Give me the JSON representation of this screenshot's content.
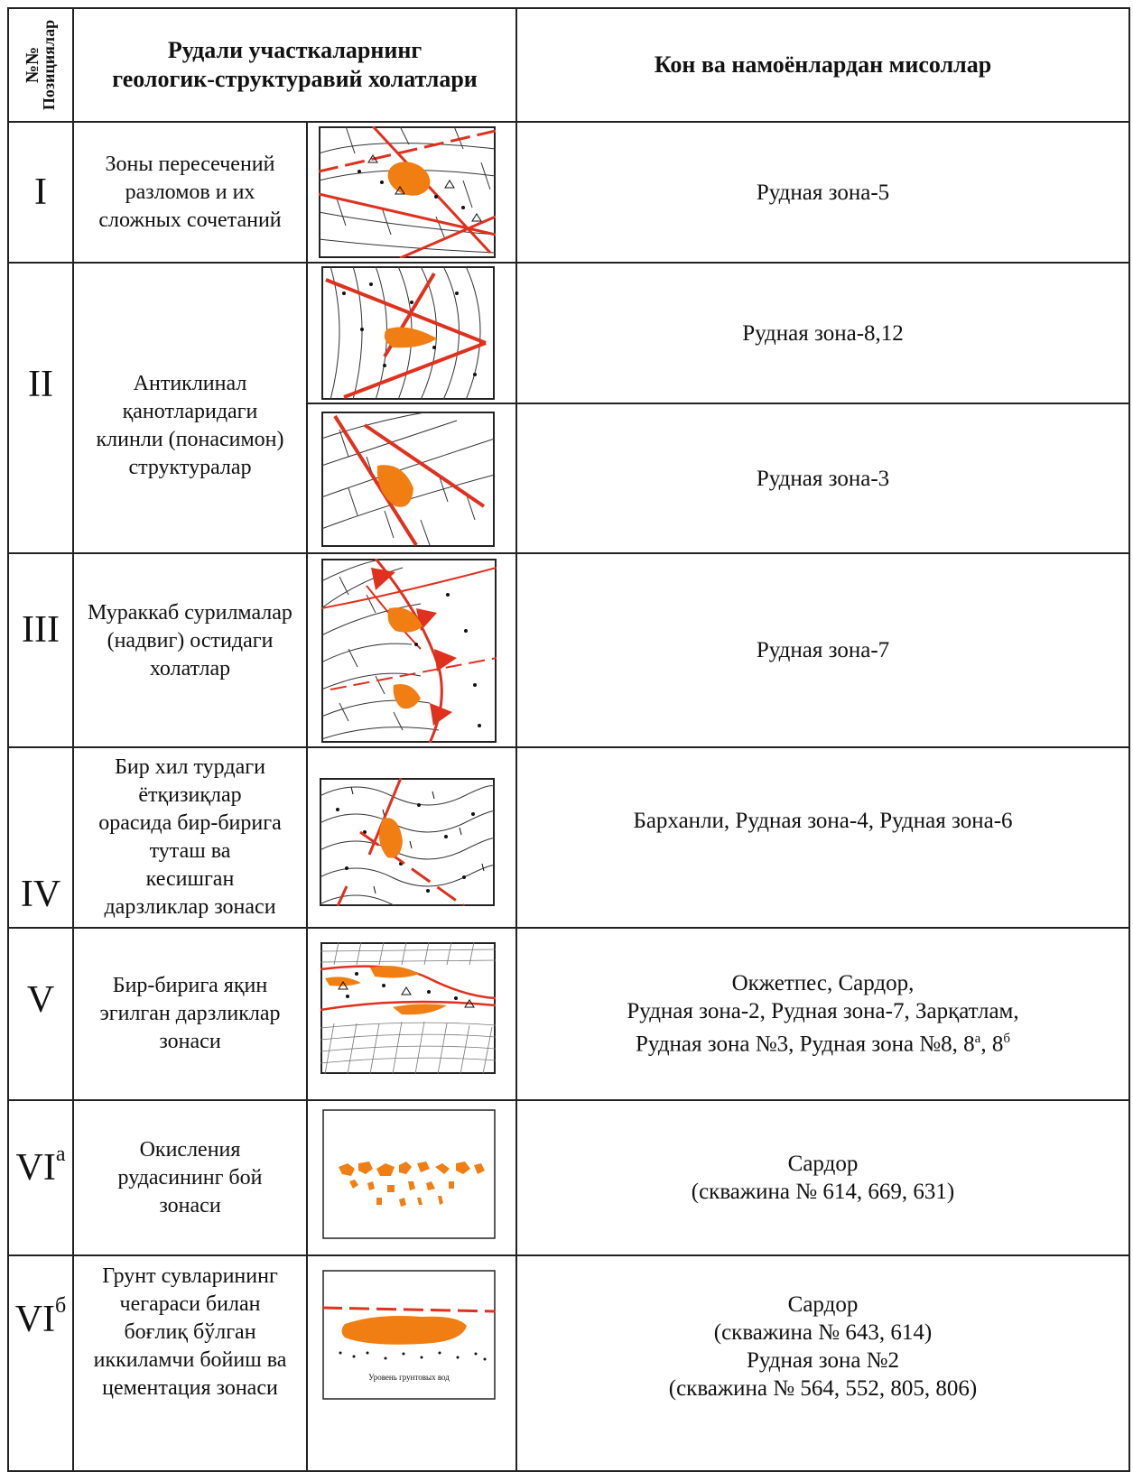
{
  "header": {
    "col_num_line1": "№№",
    "col_num_line2": "Позициялар",
    "col_desc_line1": "Рудали участкаларнинг",
    "col_desc_line2": "геологик-структуравий холатлари",
    "col_examples": "Кон ва намоёнлардан мисоллар"
  },
  "rows": [
    {
      "pos": "I",
      "desc": [
        "Зоны  пересечений",
        "разломов и их",
        "сложных сочетаний"
      ],
      "example": [
        "Рудная зона-5"
      ]
    },
    {
      "pos": "II",
      "desc": [
        "Антиклинал",
        "қанотларидаги",
        "клинли (понасимон)",
        "структуралар"
      ],
      "example_a": [
        "Рудная зона-8,12"
      ],
      "example_b": [
        "Рудная зона-3"
      ]
    },
    {
      "pos": "III",
      "desc": [
        "Мураккаб сурилмалар",
        "(надвиг) остидаги",
        "холатлар"
      ],
      "example": [
        "Рудная зона-7"
      ]
    },
    {
      "pos": "IV",
      "desc": [
        "Бир хил турдаги",
        "ётқизиқлар",
        "орасида бир-бирига",
        "туташ ва",
        "кесишган",
        "дарзликлар зонаси"
      ],
      "example": [
        "Барханли, Рудная зона-4, Рудная зона-6"
      ]
    },
    {
      "pos": "V",
      "desc": [
        "Бир-бирига яқин",
        "эгилган дарзликлар",
        "зонаси"
      ],
      "example_l1": "Окжетпес,  Сардор,",
      "example_l2": "Рудная зона-2,  Рудная зона-7,  Зарқатлам,",
      "example_l3": "Рудная зона №3, Рудная зона №8, 8",
      "sup_a": "а",
      "sep": ", 8",
      "sup_b": "б"
    },
    {
      "pos": "VI",
      "pos_sup": "а",
      "desc": [
        "Окисления",
        "рудасининг бой",
        "зонаси"
      ],
      "example": [
        "Сардор",
        "(скважина № 614, 669, 631)"
      ]
    },
    {
      "pos": "VI",
      "pos_sup": "б",
      "desc": [
        "Грунт сувларининг",
        "чегараси билан",
        "боғлиқ бўлган",
        "иккиламчи бойиш ва",
        "цементация зонаси"
      ],
      "example": [
        "Сардор",
        "(скважина № 643, 614)",
        "Рудная зона №2",
        "(скважина № 564, 552, 805, 806)"
      ],
      "diagram_label": "Уровень грунтовых вод"
    }
  ],
  "colors": {
    "ore": "#F07E12",
    "fault": "#E0301E",
    "line": "#222222"
  }
}
